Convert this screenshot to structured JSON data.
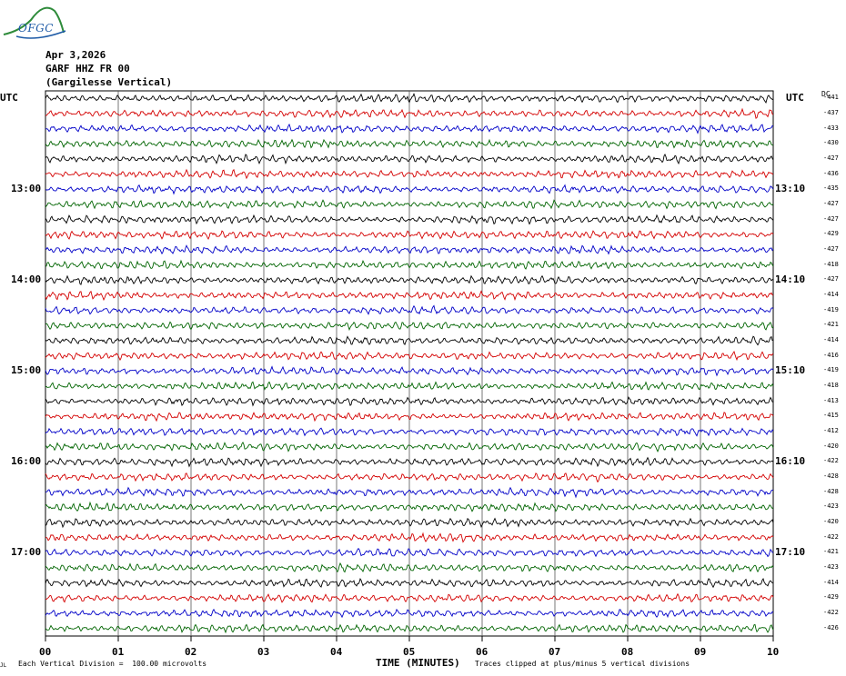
{
  "header": {
    "logo_text": "OFGC",
    "date": "Apr 3,2026",
    "station": "GARF HHZ FR 00",
    "location": "(Gargilesse Vertical)"
  },
  "labels": {
    "utc_left": "UTC",
    "utc_right": "UTC",
    "dc": "DC",
    "x_axis": "TIME (MINUTES)",
    "foot_left": "Each Vertical Division =  100.00 microvolts",
    "foot_right": "Traces clipped at plus/minus 5 vertical divisions",
    "foot_mark": "JL"
  },
  "colors": {
    "trace_cycle": [
      "#000000",
      "#d40000",
      "#0000c8",
      "#006400"
    ],
    "grid": "#000000"
  },
  "chart_data": {
    "type": "line",
    "title": "GARF HHZ FR 00 (Gargilesse Vertical)",
    "xlabel": "TIME (MINUTES)",
    "x_ticks": [
      "00",
      "01",
      "02",
      "03",
      "04",
      "05",
      "06",
      "07",
      "08",
      "09",
      "10"
    ],
    "xlim": [
      0,
      10
    ],
    "trace_count": 36,
    "left_time_labels": [
      {
        "row": 6,
        "label": "13:00"
      },
      {
        "row": 12,
        "label": "14:00"
      },
      {
        "row": 18,
        "label": "15:00"
      },
      {
        "row": 24,
        "label": "16:00"
      },
      {
        "row": 30,
        "label": "17:00"
      }
    ],
    "right_time_labels": [
      {
        "row": 6,
        "label": "13:10"
      },
      {
        "row": 12,
        "label": "14:10"
      },
      {
        "row": 18,
        "label": "15:10"
      },
      {
        "row": 24,
        "label": "16:10"
      },
      {
        "row": 30,
        "label": "17:10"
      }
    ],
    "dc_offsets": [
      "-441",
      "-437",
      "-433",
      "-430",
      "-427",
      "-436",
      "-435",
      "-427",
      "-427",
      "-429",
      "-427",
      "-418",
      "-427",
      "-414",
      "-419",
      "-421",
      "-414",
      "-416",
      "-419",
      "-418",
      "-413",
      "-415",
      "-412",
      "-420",
      "-422",
      "-428",
      "-428",
      "-423",
      "-420",
      "-422",
      "-421",
      "-423",
      "-414",
      "-429",
      "-422",
      "-426"
    ]
  }
}
